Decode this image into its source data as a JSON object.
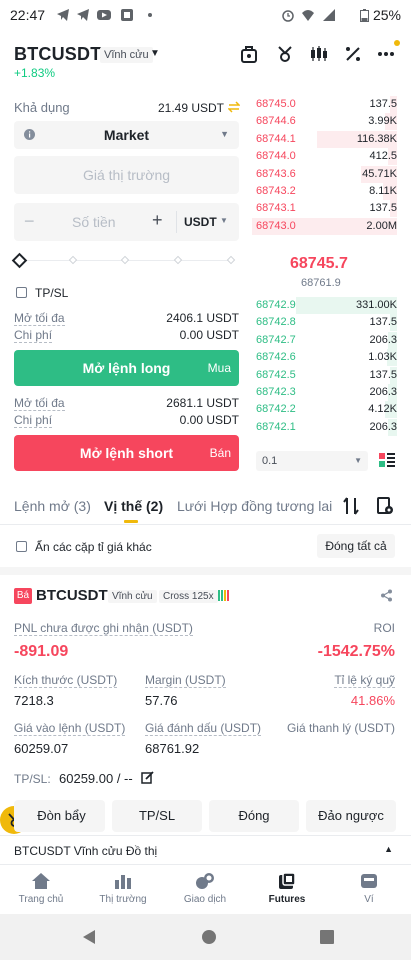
{
  "status_bar": {
    "time": "22:47",
    "battery": "25%"
  },
  "header": {
    "symbol": "BTCUSDT",
    "contract_type": "Vĩnh cửu",
    "change": "+1.83%"
  },
  "trade": {
    "available_label": "Khả dụng",
    "available_value": "21.49 USDT",
    "order_type": "Market",
    "price_placeholder": "Giá thị trường",
    "amount_placeholder": "Số tiền",
    "amount_unit": "USDT",
    "tpsl_label": "TP/SL",
    "long_max_label": "Mở tối đa",
    "long_max_value": "2406.1 USDT",
    "long_cost_label": "Chi phí",
    "long_cost_value": "0.00 USDT",
    "long_button": "Mở lệnh long",
    "long_side": "Mua",
    "short_max_label": "Mở tối đa",
    "short_max_value": "2681.1 USDT",
    "short_cost_label": "Chi phí",
    "short_cost_value": "0.00 USDT",
    "short_button": "Mở lệnh short",
    "short_side": "Bán"
  },
  "order_book": {
    "asks": [
      {
        "price": "68745.0",
        "qty": "137.5",
        "depth": 0.05
      },
      {
        "price": "68744.6",
        "qty": "3.99K",
        "depth": 0.08
      },
      {
        "price": "68744.1",
        "qty": "116.38K",
        "depth": 0.55
      },
      {
        "price": "68744.0",
        "qty": "412.5",
        "depth": 0.06
      },
      {
        "price": "68743.6",
        "qty": "45.71K",
        "depth": 0.25
      },
      {
        "price": "68743.2",
        "qty": "8.11K",
        "depth": 0.1
      },
      {
        "price": "68743.1",
        "qty": "137.5",
        "depth": 0.05
      },
      {
        "price": "68743.0",
        "qty": "2.00M",
        "depth": 1.0
      }
    ],
    "last_price": "68745.7",
    "mark_price": "68761.9",
    "bids": [
      {
        "price": "68742.9",
        "qty": "331.00K",
        "depth": 0.7
      },
      {
        "price": "68742.8",
        "qty": "137.5",
        "depth": 0.05
      },
      {
        "price": "68742.7",
        "qty": "206.3",
        "depth": 0.06
      },
      {
        "price": "68742.6",
        "qty": "1.03K",
        "depth": 0.07
      },
      {
        "price": "68742.5",
        "qty": "137.5",
        "depth": 0.05
      },
      {
        "price": "68742.3",
        "qty": "206.3",
        "depth": 0.06
      },
      {
        "price": "68742.2",
        "qty": "4.12K",
        "depth": 0.08
      },
      {
        "price": "68742.1",
        "qty": "206.3",
        "depth": 0.06
      }
    ],
    "precision": "0.1"
  },
  "tabs": {
    "open_orders": "Lệnh mở (3)",
    "positions": "Vị thế (2)",
    "grid": "Lưới Hợp đồng tương lai"
  },
  "filter": {
    "hide_label": "Ẩn các cặp tỉ giá khác",
    "close_all": "Đóng tất cả"
  },
  "position": {
    "side_badge": "Bá",
    "symbol": "BTCUSDT",
    "contract_type": "Vĩnh cửu",
    "margin_mode": "Cross 125x",
    "pnl_label": "PNL chưa được ghi nhận (USDT)",
    "pnl_value": "-891.09",
    "roi_label": "ROI",
    "roi_value": "-1542.75%",
    "size_label": "Kích thước (USDT)",
    "size_value": "7218.3",
    "margin_label": "Margin (USDT)",
    "margin_value": "57.76",
    "margin_ratio_label": "Tỉ lệ ký quỹ",
    "margin_ratio_value": "41.86%",
    "entry_label": "Giá vào lệnh (USDT)",
    "entry_value": "60259.07",
    "mark_label": "Giá đánh dấu (USDT)",
    "mark_value": "68761.92",
    "liq_label": "Giá thanh lý (USDT)",
    "tpsl_label": "TP/SL:",
    "tpsl_value": "60259.00 / --"
  },
  "actions": {
    "leverage": "Đòn bẩy",
    "tpsl": "TP/SL",
    "close": "Đóng",
    "reverse": "Đảo ngược"
  },
  "chart_bar": {
    "label": "BTCUSDT Vĩnh cửu Đồ thị"
  },
  "nav": {
    "home": "Trang chủ",
    "markets": "Thị trường",
    "trade": "Giao dịch",
    "futures": "Futures",
    "wallet": "Ví"
  },
  "colors": {
    "green": "#2ebd85",
    "red": "#f6465d",
    "accent": "#f0b90b"
  }
}
